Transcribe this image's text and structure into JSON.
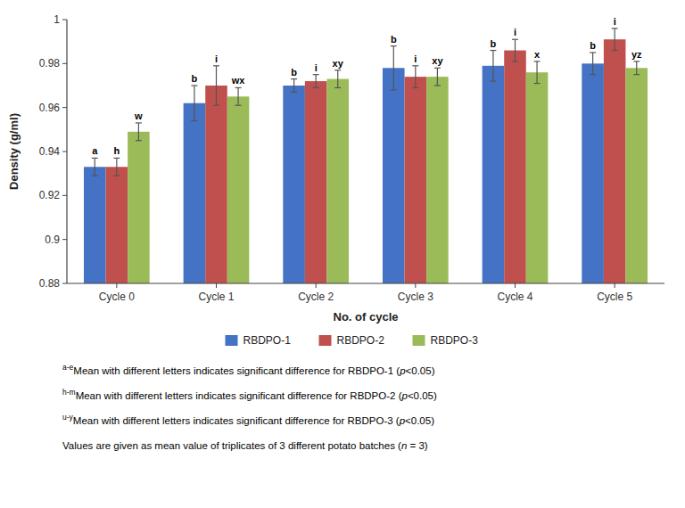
{
  "chart_data": {
    "type": "bar",
    "categories": [
      "Cycle 0",
      "Cycle 1",
      "Cycle 2",
      "Cycle 3",
      "Cycle 4",
      "Cycle 5"
    ],
    "series": [
      {
        "name": "RBDPO-1",
        "color": "#4472C4",
        "values": [
          0.933,
          0.962,
          0.97,
          0.978,
          0.979,
          0.98
        ],
        "errors": [
          0.004,
          0.008,
          0.003,
          0.01,
          0.007,
          0.005
        ],
        "labels": [
          "a",
          "b",
          "b",
          "b",
          "b",
          "b"
        ]
      },
      {
        "name": "RBDPO-2",
        "color": "#C0504D",
        "values": [
          0.933,
          0.97,
          0.972,
          0.974,
          0.986,
          0.991
        ],
        "errors": [
          0.004,
          0.009,
          0.003,
          0.005,
          0.005,
          0.005
        ],
        "labels": [
          "h",
          "i",
          "i",
          "i",
          "i",
          "i"
        ]
      },
      {
        "name": "RBDPO-3",
        "color": "#9BBB59",
        "values": [
          0.949,
          0.965,
          0.973,
          0.974,
          0.976,
          0.978
        ],
        "errors": [
          0.004,
          0.004,
          0.004,
          0.004,
          0.005,
          0.003
        ],
        "labels": [
          "w",
          "wx",
          "xy",
          "xy",
          "x",
          "yz"
        ]
      }
    ],
    "xlabel": "No. of cycle",
    "ylabel": "Density (g/ml)",
    "ylim": [
      0.88,
      1.0
    ],
    "yticks": [
      0.88,
      0.9,
      0.92,
      0.94,
      0.96,
      0.98,
      1.0
    ],
    "grid": false,
    "legend": "bottom",
    "footnotes": [
      {
        "sup": "a-e",
        "main": "Mean with different letters indicates significant difference for RBDPO-1 (",
        "italic": "p",
        "rest": "<0.05)"
      },
      {
        "sup": "h-m",
        "main": "Mean with different letters indicates significant difference for RBDPO-2 (",
        "italic": "p",
        "rest": "<0.05)"
      },
      {
        "sup": "u-y",
        "main": "Mean with different letters indicates significant difference for RBDPO-3 (",
        "italic": "p",
        "rest": "<0.05)"
      },
      {
        "sup": "",
        "main": "Values are given as mean value of triplicates of 3 different potato batches (",
        "italic": "n",
        "rest": " = 3)"
      }
    ]
  }
}
